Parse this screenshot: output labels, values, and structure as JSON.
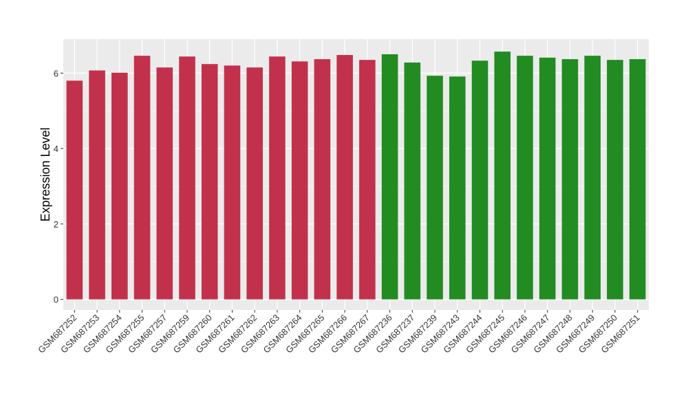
{
  "chart_data": {
    "type": "bar",
    "ylabel": "Expression Level",
    "xlabel": "",
    "ylim": [
      -0.28,
      6.9
    ],
    "yticks": [
      0,
      2,
      4,
      6
    ],
    "grid": true,
    "legend": "none",
    "group_colors": [
      "#c2314b",
      "#228b22"
    ],
    "panel_background": "#ebebeb",
    "categories": [
      "GSM687252",
      "GSM687253",
      "GSM687254",
      "GSM687255",
      "GSM687257",
      "GSM687259",
      "GSM687260",
      "GSM687261",
      "GSM687262",
      "GSM687263",
      "GSM687264",
      "GSM687265",
      "GSM687266",
      "GSM687267",
      "GSM687236",
      "GSM687237",
      "GSM687239",
      "GSM687243",
      "GSM687244",
      "GSM687245",
      "GSM687246",
      "GSM687247",
      "GSM687248",
      "GSM687249",
      "GSM687250",
      "GSM687251"
    ],
    "values": [
      5.8,
      6.07,
      6.01,
      6.46,
      6.15,
      6.44,
      6.24,
      6.2,
      6.15,
      6.44,
      6.31,
      6.37,
      6.48,
      6.35,
      6.5,
      6.28,
      5.93,
      5.91,
      6.33,
      6.57,
      6.46,
      6.41,
      6.37,
      6.46,
      6.35,
      6.37
    ],
    "groups": [
      0,
      0,
      0,
      0,
      0,
      0,
      0,
      0,
      0,
      0,
      0,
      0,
      0,
      0,
      1,
      1,
      1,
      1,
      1,
      1,
      1,
      1,
      1,
      1,
      1,
      1
    ]
  }
}
